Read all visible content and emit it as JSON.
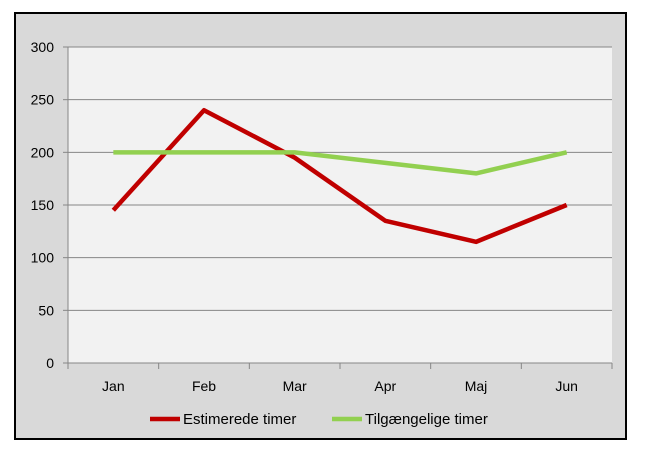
{
  "chart_data": {
    "type": "line",
    "title": "",
    "xlabel": "",
    "ylabel": "",
    "categories": [
      "Jan",
      "Feb",
      "Mar",
      "Apr",
      "Maj",
      "Jun"
    ],
    "ylim": [
      0,
      300
    ],
    "yticks": [
      0,
      50,
      100,
      150,
      200,
      250,
      300
    ],
    "grid": true,
    "legend_position": "bottom",
    "series": [
      {
        "name": "Estimerede timer",
        "color": "#c00000",
        "values": [
          145,
          240,
          195,
          135,
          115,
          150
        ]
      },
      {
        "name": "Tilgængelige timer",
        "color": "#92d050",
        "values": [
          200,
          200,
          200,
          190,
          180,
          200
        ]
      }
    ],
    "colors": {
      "frame_bg": "#d9d9d9",
      "plot_bg": "#f2f2f2",
      "grid": "#868686"
    }
  }
}
